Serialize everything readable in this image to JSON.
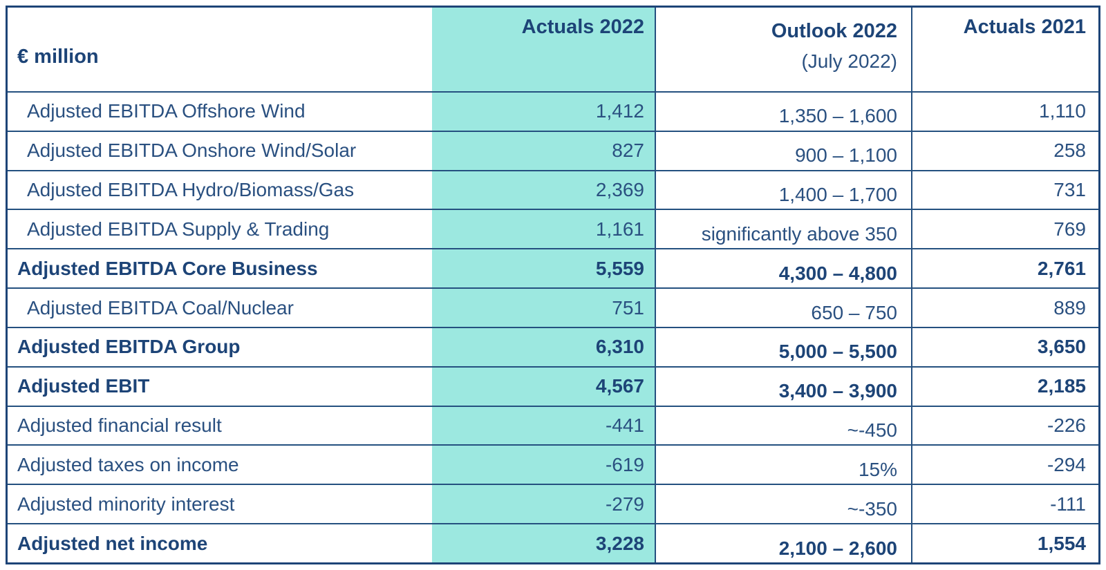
{
  "table": {
    "unit_label": "€ million",
    "columns": [
      {
        "label": "Actuals 2022",
        "highlighted": true
      },
      {
        "label": "Outlook 2022",
        "sublabel": "(July 2022)",
        "highlighted": false
      },
      {
        "label": "Actuals 2021",
        "highlighted": false
      }
    ],
    "rows": [
      {
        "label": "Adjusted EBITDA Offshore Wind",
        "bold": false,
        "actuals_2022": "1,412",
        "outlook_2022": "1,350 – 1,600",
        "actuals_2021": "1,110"
      },
      {
        "label": "Adjusted EBITDA Onshore Wind/Solar",
        "bold": false,
        "actuals_2022": "827",
        "outlook_2022": "900 – 1,100",
        "actuals_2021": "258"
      },
      {
        "label": "Adjusted EBITDA Hydro/Biomass/Gas",
        "bold": false,
        "actuals_2022": "2,369",
        "outlook_2022": "1,400 – 1,700",
        "actuals_2021": "731"
      },
      {
        "label": "Adjusted EBITDA Supply & Trading",
        "bold": false,
        "actuals_2022": "1,161",
        "outlook_2022": "significantly above 350",
        "actuals_2021": "769"
      },
      {
        "label": "Adjusted EBITDA Core Business",
        "bold": true,
        "actuals_2022": "5,559",
        "outlook_2022": "4,300 – 4,800",
        "actuals_2021": "2,761"
      },
      {
        "label": "Adjusted EBITDA Coal/Nuclear",
        "bold": false,
        "actuals_2022": "751",
        "outlook_2022": "650 – 750",
        "actuals_2021": "889"
      },
      {
        "label": "Adjusted EBITDA Group",
        "bold": true,
        "actuals_2022": "6,310",
        "outlook_2022": "5,000 – 5,500",
        "actuals_2021": "3,650"
      },
      {
        "label": "Adjusted EBIT",
        "bold": true,
        "actuals_2022": "4,567",
        "outlook_2022": "3,400 – 3,900",
        "actuals_2021": "2,185"
      },
      {
        "label": "Adjusted financial result",
        "bold": false,
        "actuals_2022": "-441",
        "outlook_2022": "~-450",
        "actuals_2021": "-226"
      },
      {
        "label": "Adjusted taxes on income",
        "bold": false,
        "actuals_2022": "-619",
        "outlook_2022": "15%",
        "actuals_2021": "-294"
      },
      {
        "label": "Adjusted minority interest",
        "bold": false,
        "actuals_2022": "-279",
        "outlook_2022": "~-350",
        "actuals_2021": "-111"
      },
      {
        "label": "Adjusted net income",
        "bold": true,
        "actuals_2022": "3,228",
        "outlook_2022": "2,100 – 2,600",
        "actuals_2021": "1,554"
      }
    ]
  },
  "colors": {
    "navy_text": "#1d4477",
    "regular_text": "#2a5080",
    "highlight_teal": "#9CE8E0",
    "border_navy": "#1d4477"
  }
}
